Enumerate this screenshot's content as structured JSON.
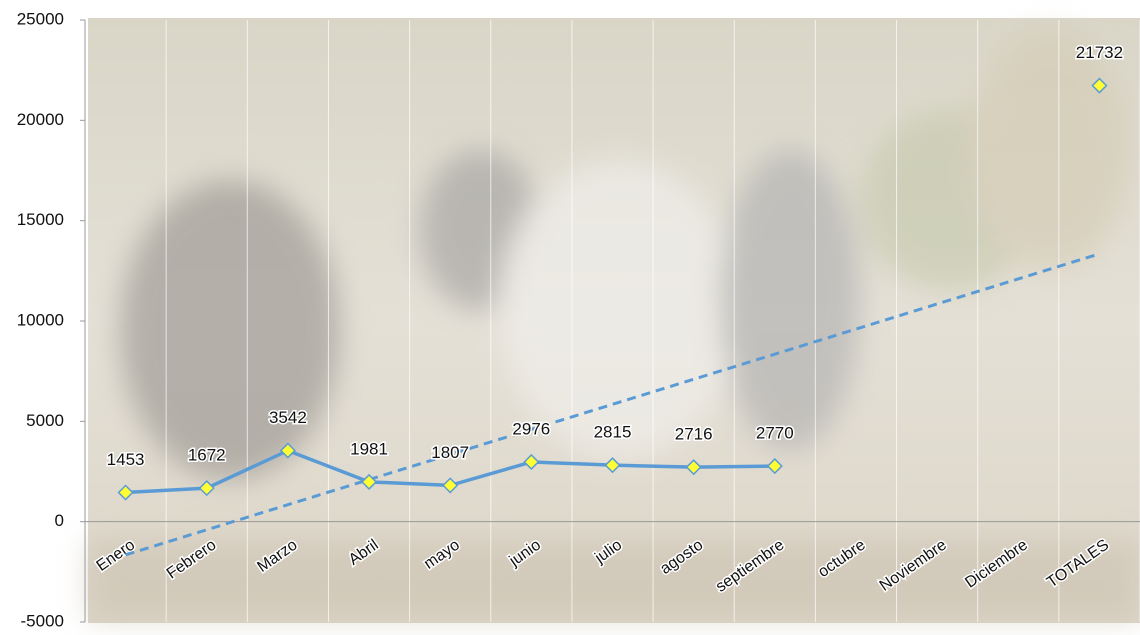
{
  "chart_data": {
    "type": "line",
    "categories": [
      "Enero",
      "Febrero",
      "Marzo",
      "Abril",
      "mayo",
      "junio",
      "julio",
      "agosto",
      "septiembre",
      "octubre",
      "Noviembre",
      "Diciembre",
      "TOTALES"
    ],
    "series": [
      {
        "color": "#5b9bd5",
        "marker_color": "#ffff33",
        "values": [
          1453,
          1672,
          3542,
          1981,
          1807,
          2976,
          2815,
          2716,
          2770,
          null,
          null,
          null,
          21732
        ]
      }
    ],
    "trendline": "linear",
    "ylim": [
      -5000,
      25000
    ],
    "yticks": [
      -5000,
      0,
      5000,
      10000,
      15000,
      20000,
      25000
    ],
    "grid": "vertical"
  }
}
